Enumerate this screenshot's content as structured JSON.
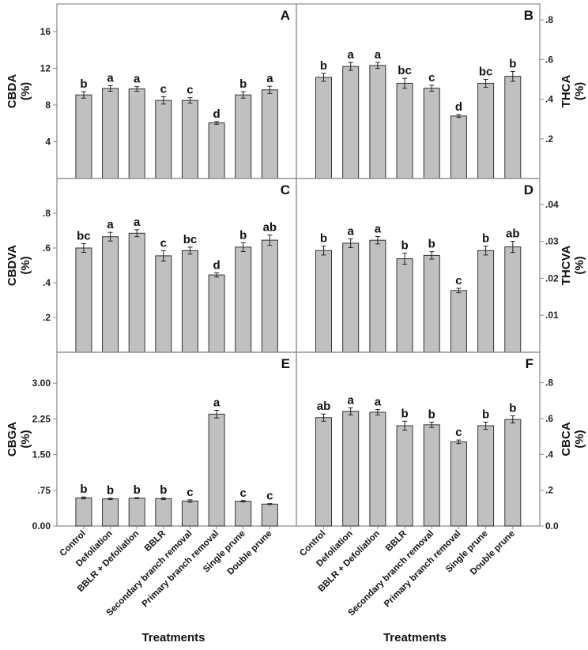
{
  "chart_data": [
    {
      "type": "bar",
      "panel": "A",
      "ylabel": "CBDA",
      "yunit": "(%)",
      "yaxis_side": "left",
      "ylim": [
        0,
        19
      ],
      "yticks": [
        "4",
        "8",
        "12",
        "16"
      ],
      "ytick_values": [
        4,
        8,
        12,
        16
      ],
      "categories": [
        "Control",
        "Defoliation",
        "BBLR + Defoliation",
        "BBLR",
        "Secondary branch removal",
        "Primary branch removal",
        "Single prune",
        "Double prune"
      ],
      "values": [
        9.1,
        9.8,
        9.75,
        8.5,
        8.5,
        6.05,
        9.1,
        9.65
      ],
      "errors": [
        0.35,
        0.3,
        0.25,
        0.4,
        0.3,
        0.15,
        0.35,
        0.4
      ],
      "letters": [
        "b",
        "a",
        "a",
        "c",
        "c",
        "d",
        "b",
        "a"
      ]
    },
    {
      "type": "bar",
      "panel": "B",
      "ylabel": "THCA",
      "yunit": "(%)",
      "yaxis_side": "right",
      "ylim": [
        0,
        0.88
      ],
      "yticks": [
        ".2",
        ".4",
        ".6",
        ".8"
      ],
      "ytick_values": [
        0.2,
        0.4,
        0.6,
        0.8
      ],
      "categories": [
        "Control",
        "Defoliation",
        "BBLR + Defoliation",
        "BBLR",
        "Secondary branch removal",
        "Primary branch removal",
        "Single prune",
        "Double prune"
      ],
      "values": [
        0.51,
        0.565,
        0.57,
        0.48,
        0.455,
        0.315,
        0.48,
        0.515
      ],
      "errors": [
        0.02,
        0.02,
        0.015,
        0.025,
        0.015,
        0.007,
        0.02,
        0.025
      ],
      "letters": [
        "b",
        "a",
        "a",
        "bc",
        "c",
        "d",
        "bc",
        "b"
      ]
    },
    {
      "type": "bar",
      "panel": "C",
      "ylabel": "CBDVA",
      "yunit": "(%)",
      "yaxis_side": "left",
      "ylim": [
        0,
        1.0
      ],
      "yticks": [
        ".2",
        ".4",
        ".6",
        ".8"
      ],
      "ytick_values": [
        0.2,
        0.4,
        0.6,
        0.8
      ],
      "categories": [
        "Control",
        "Defoliation",
        "BBLR + Defoliation",
        "BBLR",
        "Secondary branch removal",
        "Primary branch removal",
        "Single prune",
        "Double prune"
      ],
      "values": [
        0.6,
        0.665,
        0.685,
        0.555,
        0.585,
        0.445,
        0.605,
        0.645
      ],
      "errors": [
        0.025,
        0.025,
        0.02,
        0.03,
        0.02,
        0.012,
        0.025,
        0.03
      ],
      "letters": [
        "bc",
        "a",
        "a",
        "c",
        "bc",
        "d",
        "b",
        "ab"
      ]
    },
    {
      "type": "bar",
      "panel": "D",
      "ylabel": "THCVA",
      "yunit": "(%)",
      "yaxis_side": "right",
      "ylim": [
        0,
        0.047
      ],
      "yticks": [
        ".01",
        ".02",
        ".03",
        ".04"
      ],
      "ytick_values": [
        0.01,
        0.02,
        0.03,
        0.04
      ],
      "categories": [
        "Control",
        "Defoliation",
        "BBLR + Defoliation",
        "BBLR",
        "Secondary branch removal",
        "Primary branch removal",
        "Single prune",
        "Double prune"
      ],
      "values": [
        0.0275,
        0.0295,
        0.0303,
        0.0253,
        0.0262,
        0.0167,
        0.0275,
        0.0285
      ],
      "errors": [
        0.0012,
        0.0012,
        0.001,
        0.0015,
        0.001,
        0.0006,
        0.0012,
        0.0015
      ],
      "letters": [
        "b",
        "a",
        "a",
        "b",
        "b",
        "c",
        "b",
        "ab"
      ]
    },
    {
      "type": "bar",
      "panel": "E",
      "ylabel": "CBGA",
      "yunit": "(%)",
      "yaxis_side": "left",
      "ylim": [
        0,
        3.65
      ],
      "yticks": [
        "0.00",
        ".75",
        "1.50",
        "2.25",
        "3.00"
      ],
      "ytick_values": [
        0,
        0.75,
        1.5,
        2.25,
        3.0
      ],
      "categories": [
        "Control",
        "Defoliation",
        "BBLR + Defoliation",
        "BBLR",
        "Secondary branch removal",
        "Primary branch removal",
        "Single prune",
        "Double prune"
      ],
      "values": [
        0.59,
        0.57,
        0.585,
        0.575,
        0.525,
        2.35,
        0.52,
        0.46
      ],
      "errors": [
        0.02,
        0.015,
        0.01,
        0.02,
        0.025,
        0.08,
        0.015,
        0.01
      ],
      "letters": [
        "b",
        "b",
        "b",
        "b",
        "c",
        "a",
        "c",
        "c"
      ]
    },
    {
      "type": "bar",
      "panel": "F",
      "ylabel": "CBCA",
      "yunit": "(%)",
      "yaxis_side": "right",
      "ylim": [
        0,
        0.97
      ],
      "yticks": [
        "0.0",
        ".2",
        ".4",
        ".6",
        ".8"
      ],
      "ytick_values": [
        0,
        0.2,
        0.4,
        0.6,
        0.8
      ],
      "categories": [
        "Control",
        "Defoliation",
        "BBLR + Defoliation",
        "BBLR",
        "Secondary branch removal",
        "Primary branch removal",
        "Single prune",
        "Double prune"
      ],
      "values": [
        0.605,
        0.64,
        0.635,
        0.56,
        0.565,
        0.47,
        0.56,
        0.595
      ],
      "errors": [
        0.02,
        0.02,
        0.015,
        0.025,
        0.015,
        0.01,
        0.02,
        0.02
      ],
      "letters": [
        "ab",
        "a",
        "a",
        "b",
        "b",
        "c",
        "b",
        "b"
      ]
    }
  ],
  "xlabel": "Treatments",
  "colors": {
    "bar": "#c0c0c0",
    "bar_edge": "#333333",
    "frame": "#888888"
  }
}
